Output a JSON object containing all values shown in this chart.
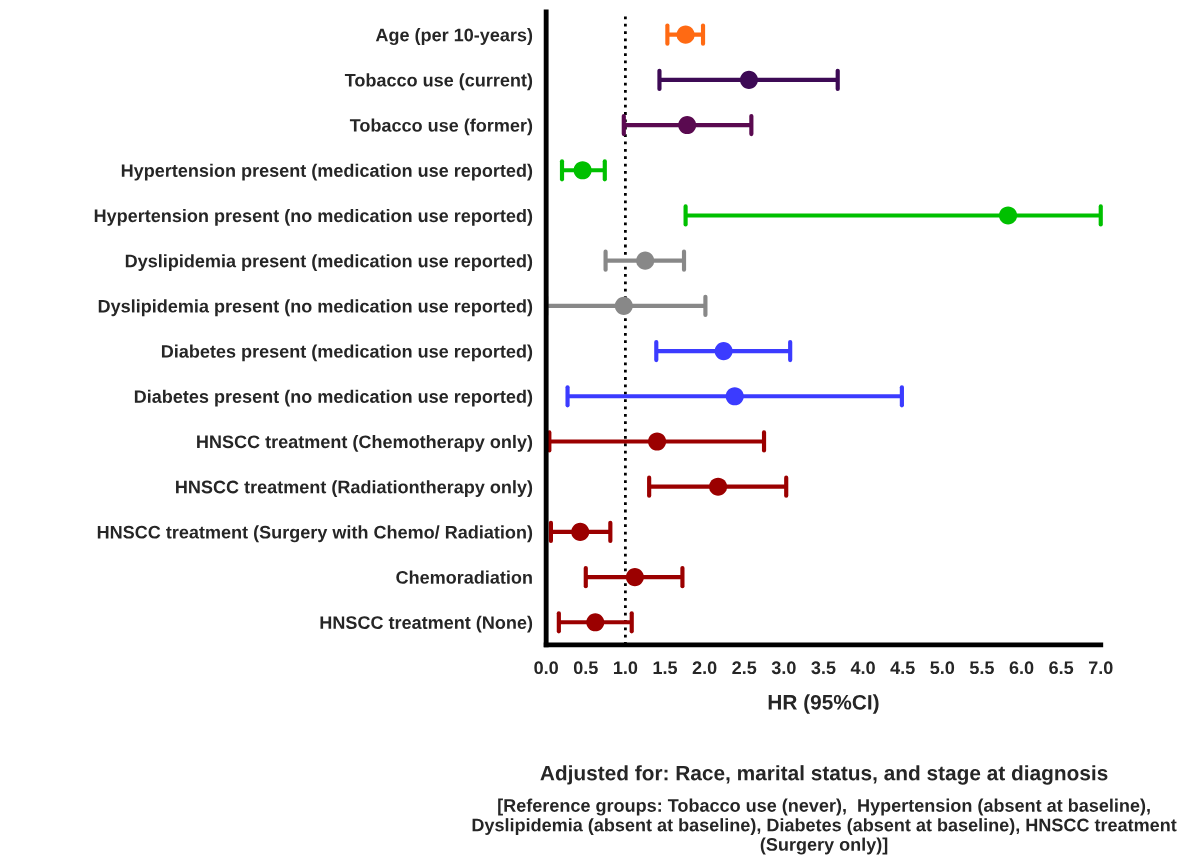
{
  "chart_data": {
    "type": "scatter",
    "orientation": "horizontal",
    "marker": "circle",
    "grid": false,
    "xlabel": "HR (95%CI)",
    "categories": [
      "Age (per 10-years)",
      "Tobacco use (current)",
      "Tobacco use (former)",
      "Hypertension present (medication use reported)",
      "Hypertension present (no medication use reported)",
      "Dyslipidemia present (medication use reported)",
      "Dyslipidemia present (no medication use reported)",
      "Diabetes present (medication use reported)",
      "Diabetes present (no medication use reported)",
      "HNSCC treatment (Chemotherapy only)",
      "HNSCC treatment (Radiationtherapy only)",
      "HNSCC treatment (Surgery with Chemo/ Radiation)",
      "Chemoradiation",
      "HNSCC treatment (None)"
    ],
    "values": [
      1.76,
      2.56,
      1.78,
      0.46,
      5.83,
      1.25,
      0.98,
      2.24,
      2.38,
      1.4,
      2.17,
      0.43,
      1.12,
      0.62
    ],
    "errors": [
      [
        1.53,
        1.98
      ],
      [
        1.43,
        3.68
      ],
      [
        0.98,
        2.59
      ],
      [
        0.2,
        0.74
      ],
      [
        1.76,
        7.0
      ],
      [
        0.75,
        1.74
      ],
      [
        0.0,
        2.01
      ],
      [
        1.39,
        3.08
      ],
      [
        0.27,
        4.49
      ],
      [
        0.04,
        2.75
      ],
      [
        1.3,
        3.03
      ],
      [
        0.06,
        0.81
      ],
      [
        0.5,
        1.72
      ],
      [
        0.16,
        1.08
      ]
    ],
    "colors": [
      "#ff6a13",
      "#3d0a55",
      "#5a0a50",
      "#00c000",
      "#00c000",
      "#888888",
      "#888888",
      "#3b3bff",
      "#3b3bff",
      "#9b0000",
      "#9b0000",
      "#9b0000",
      "#9b0000",
      "#9b0000"
    ],
    "xlim": [
      0,
      7
    ],
    "xticks": [
      {
        "value": 0,
        "label": "0.0"
      },
      {
        "value": 0.5,
        "label": "0.5"
      },
      {
        "value": 1,
        "label": "1.0"
      },
      {
        "value": 1.5,
        "label": "1.5"
      },
      {
        "value": 2,
        "label": "2.0"
      },
      {
        "value": 2.5,
        "label": "2.5"
      },
      {
        "value": 3,
        "label": "3.0"
      },
      {
        "value": 3.5,
        "label": "3.5"
      },
      {
        "value": 4,
        "label": "4.0"
      },
      {
        "value": 4.5,
        "label": "4.5"
      },
      {
        "value": 5,
        "label": "5.0"
      },
      {
        "value": 5.5,
        "label": "5.5"
      },
      {
        "value": 6,
        "label": "6.0"
      },
      {
        "value": 6.5,
        "label": "6.5"
      },
      {
        "value": 7,
        "label": "7.0"
      }
    ],
    "ref_lines": [
      {
        "axis": "x",
        "value": 1,
        "color": "#000000",
        "line_style": "dotted"
      }
    ],
    "annotations": [
      "Adjusted for: Race, marital status, and stage at diagnosis",
      "[Reference groups: Tobacco use (never),  Hypertension (absent at baseline), Dyslipidemia (absent at baseline), Diabetes (absent at baseline), HNSCC treatment (Surgery only)]"
    ]
  }
}
